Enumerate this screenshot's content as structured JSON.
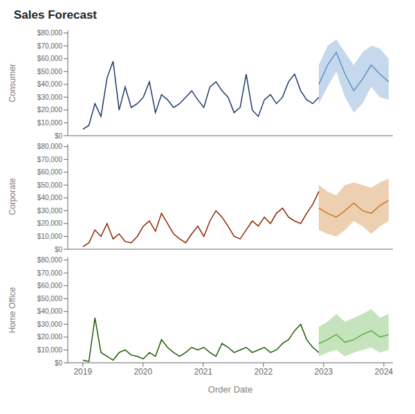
{
  "chart_data": [
    {
      "type": "line",
      "title": "Sales Forecast",
      "ylabel": "Consumer",
      "tick_labels": "y",
      "xlim": [
        2018.75,
        2024.15
      ],
      "xticks": [
        2019,
        2020,
        2021,
        2022,
        2023,
        2024
      ],
      "ylim": [
        0,
        82000
      ],
      "yticks": [
        {
          "value": 0,
          "label": "$0"
        },
        {
          "value": 10000,
          "label": "$10,000"
        },
        {
          "value": 20000,
          "label": "$20,000"
        },
        {
          "value": 30000,
          "label": "$30,000"
        },
        {
          "value": 40000,
          "label": "$40,000"
        },
        {
          "value": 50000,
          "label": "$50,000"
        },
        {
          "value": 60000,
          "label": "$60,000"
        },
        {
          "value": 70000,
          "label": "$70,000"
        },
        {
          "value": 80000,
          "label": "$80,000"
        }
      ],
      "series": [
        {
          "type": "band",
          "color": "#5b8fc9",
          "x": [
            2022.92,
            2023.065,
            2023.21,
            2023.355,
            2023.5,
            2023.645,
            2023.79,
            2023.935,
            2024.08
          ],
          "upper": [
            55000,
            70000,
            75000,
            65000,
            55000,
            65000,
            70000,
            68000,
            60000
          ],
          "lower": [
            25000,
            38000,
            50000,
            30000,
            18000,
            25000,
            38000,
            30000,
            28000
          ]
        },
        {
          "type": "line",
          "color": "#1a3a6b",
          "x": [
            2019.0,
            2019.1005,
            2019.201,
            2019.3015,
            2019.4021,
            2019.5026,
            2019.6031,
            2019.7036,
            2019.8041,
            2019.9046,
            2020.0051,
            2020.1056,
            2020.2062,
            2020.3067,
            2020.4072,
            2020.5077,
            2020.6082,
            2020.7087,
            2020.8092,
            2020.9097,
            2021.0103,
            2021.1108,
            2021.2113,
            2021.3118,
            2021.4123,
            2021.5128,
            2021.6133,
            2021.7138,
            2021.8144,
            2021.9149,
            2022.0154,
            2022.1159,
            2022.2164,
            2022.3169,
            2022.4174,
            2022.5179,
            2022.6185,
            2022.719,
            2022.8195,
            2022.92
          ],
          "values": [
            5000,
            8000,
            25000,
            15000,
            45000,
            58000,
            20000,
            38000,
            22000,
            25000,
            30000,
            42000,
            18000,
            32000,
            28000,
            22000,
            25000,
            30000,
            35000,
            28000,
            22000,
            38000,
            42000,
            35000,
            30000,
            18000,
            22000,
            48000,
            20000,
            15000,
            28000,
            32000,
            25000,
            30000,
            42000,
            48000,
            35000,
            28000,
            25000,
            30000
          ]
        },
        {
          "type": "line",
          "color": "#5b8fc9",
          "x": [
            2022.92,
            2023.065,
            2023.21,
            2023.355,
            2023.5,
            2023.645,
            2023.79,
            2023.935,
            2024.08
          ],
          "values": [
            40000,
            55000,
            65000,
            48000,
            35000,
            44000,
            55000,
            48000,
            42000
          ]
        }
      ]
    },
    {
      "type": "line",
      "ylabel": "Corporate",
      "tick_labels": "y",
      "xlim": [
        2018.75,
        2024.15
      ],
      "xticks": [
        2019,
        2020,
        2021,
        2022,
        2023,
        2024
      ],
      "ylim": [
        0,
        82000
      ],
      "yticks": [
        {
          "value": 0,
          "label": "$0"
        },
        {
          "value": 10000,
          "label": "$10,000"
        },
        {
          "value": 20000,
          "label": "$20,000"
        },
        {
          "value": 30000,
          "label": "$30,000"
        },
        {
          "value": 40000,
          "label": "$40,000"
        },
        {
          "value": 50000,
          "label": "$50,000"
        },
        {
          "value": 60000,
          "label": "$60,000"
        },
        {
          "value": 70000,
          "label": "$70,000"
        },
        {
          "value": 80000,
          "label": "$80,000"
        }
      ],
      "series": [
        {
          "type": "band",
          "color": "#c87820",
          "x": [
            2022.92,
            2023.065,
            2023.21,
            2023.355,
            2023.5,
            2023.645,
            2023.79,
            2023.935,
            2024.08
          ],
          "upper": [
            50000,
            45000,
            42000,
            50000,
            52000,
            50000,
            48000,
            52000,
            55000
          ],
          "lower": [
            15000,
            12000,
            10000,
            15000,
            22000,
            18000,
            12000,
            18000,
            22000
          ]
        },
        {
          "type": "line",
          "color": "#8b2500",
          "x": [
            2019.0,
            2019.1005,
            2019.201,
            2019.3015,
            2019.4021,
            2019.5026,
            2019.6031,
            2019.7036,
            2019.8041,
            2019.9046,
            2020.0051,
            2020.1056,
            2020.2062,
            2020.3067,
            2020.4072,
            2020.5077,
            2020.6082,
            2020.7087,
            2020.8092,
            2020.9097,
            2021.0103,
            2021.1108,
            2021.2113,
            2021.3118,
            2021.4123,
            2021.5128,
            2021.6133,
            2021.7138,
            2021.8144,
            2021.9149,
            2022.0154,
            2022.1159,
            2022.2164,
            2022.3169,
            2022.4174,
            2022.5179,
            2022.6185,
            2022.719,
            2022.8195,
            2022.92
          ],
          "values": [
            2000,
            5000,
            15000,
            10000,
            20000,
            8000,
            12000,
            6000,
            5000,
            10000,
            18000,
            22000,
            14000,
            28000,
            20000,
            12000,
            8000,
            5000,
            12000,
            18000,
            10000,
            22000,
            30000,
            25000,
            18000,
            10000,
            8000,
            15000,
            22000,
            18000,
            25000,
            20000,
            28000,
            32000,
            25000,
            22000,
            20000,
            28000,
            35000,
            45000
          ]
        },
        {
          "type": "line",
          "color": "#c87820",
          "x": [
            2022.92,
            2023.065,
            2023.21,
            2023.355,
            2023.5,
            2023.645,
            2023.79,
            2023.935,
            2024.08
          ],
          "values": [
            32000,
            28000,
            25000,
            30000,
            36000,
            30000,
            28000,
            34000,
            38000
          ]
        }
      ]
    },
    {
      "type": "line",
      "ylabel": "Home Office",
      "xlabel": "Order Date",
      "xlim": [
        2018.75,
        2024.15
      ],
      "xticks": [
        2019,
        2020,
        2021,
        2022,
        2023,
        2024
      ],
      "ylim": [
        0,
        82000
      ],
      "yticks": [
        {
          "value": 0,
          "label": "$0"
        },
        {
          "value": 10000,
          "label": "$10,000"
        },
        {
          "value": 20000,
          "label": "$20,000"
        },
        {
          "value": 30000,
          "label": "$30,000"
        },
        {
          "value": 40000,
          "label": "$40,000"
        },
        {
          "value": 50000,
          "label": "$50,000"
        },
        {
          "value": 60000,
          "label": "$60,000"
        },
        {
          "value": 70000,
          "label": "$70,000"
        },
        {
          "value": 80000,
          "label": "$80,000"
        }
      ],
      "series": [
        {
          "type": "band",
          "color": "#5ab040",
          "x": [
            2022.92,
            2023.065,
            2023.21,
            2023.355,
            2023.5,
            2023.645,
            2023.79,
            2023.935,
            2024.08
          ],
          "upper": [
            28000,
            32000,
            38000,
            32000,
            35000,
            38000,
            42000,
            35000,
            38000
          ],
          "lower": [
            5000,
            8000,
            10000,
            5000,
            8000,
            10000,
            12000,
            8000,
            10000
          ]
        },
        {
          "type": "line",
          "color": "#1a5c00",
          "x": [
            2019.0,
            2019.1005,
            2019.201,
            2019.3015,
            2019.4021,
            2019.5026,
            2019.6031,
            2019.7036,
            2019.8041,
            2019.9046,
            2020.0051,
            2020.1056,
            2020.2062,
            2020.3067,
            2020.4072,
            2020.5077,
            2020.6082,
            2020.7087,
            2020.8092,
            2020.9097,
            2021.0103,
            2021.1108,
            2021.2113,
            2021.3118,
            2021.4123,
            2021.5128,
            2021.6133,
            2021.7138,
            2021.8144,
            2021.9149,
            2022.0154,
            2022.1159,
            2022.2164,
            2022.3169,
            2022.4174,
            2022.5179,
            2022.6185,
            2022.719,
            2022.8195,
            2022.92
          ],
          "values": [
            2000,
            1000,
            35000,
            8000,
            5000,
            2000,
            8000,
            10000,
            6000,
            5000,
            3000,
            8000,
            5000,
            18000,
            12000,
            8000,
            5000,
            8000,
            12000,
            10000,
            12000,
            8000,
            5000,
            15000,
            12000,
            8000,
            10000,
            12000,
            8000,
            10000,
            12000,
            8000,
            10000,
            15000,
            18000,
            25000,
            30000,
            18000,
            12000,
            8000
          ]
        },
        {
          "type": "line",
          "color": "#5ab040",
          "x": [
            2022.92,
            2023.065,
            2023.21,
            2023.355,
            2023.5,
            2023.645,
            2023.79,
            2023.935,
            2024.08
          ],
          "values": [
            15000,
            18000,
            22000,
            16000,
            18000,
            22000,
            25000,
            20000,
            22000
          ]
        }
      ]
    }
  ]
}
